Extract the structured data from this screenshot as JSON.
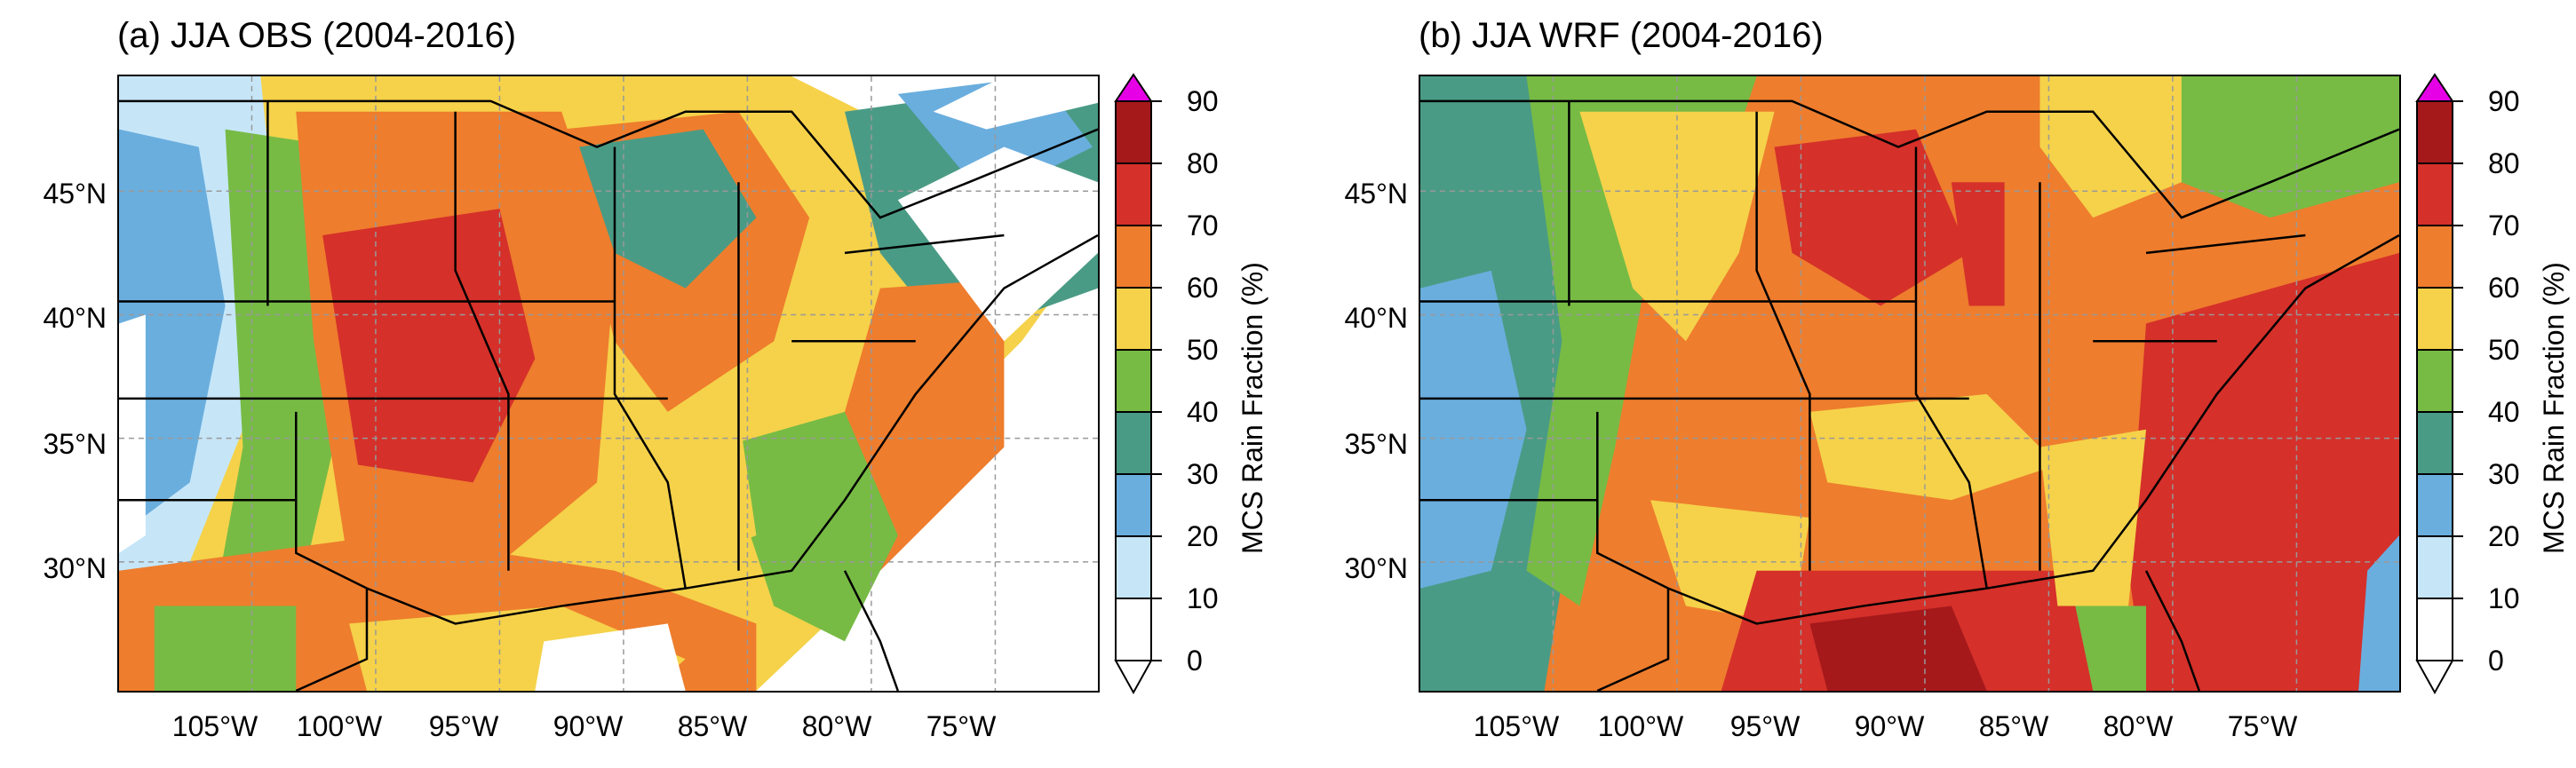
{
  "panels": [
    {
      "id": "a",
      "title": "(a) JJA OBS (2004-2016)",
      "lat_labels": [
        "45°N",
        "40°N",
        "35°N",
        "30°N"
      ],
      "lon_labels": [
        "105°W",
        "100°W",
        "95°W",
        "90°W",
        "85°W",
        "80°W",
        "75°W"
      ],
      "colorbar_label": "MCS Rain Fraction (%)",
      "colorbar_ticks": [
        "0",
        "10",
        "20",
        "30",
        "40",
        "50",
        "60",
        "70",
        "80",
        "90"
      ]
    },
    {
      "id": "b",
      "title": "(b) JJA WRF (2004-2016)",
      "lat_labels": [
        "45°N",
        "40°N",
        "35°N",
        "30°N"
      ],
      "lon_labels": [
        "105°W",
        "100°W",
        "95°W",
        "90°W",
        "85°W",
        "80°W",
        "75°W"
      ],
      "colorbar_label": "MCS Rain Fraction (%)",
      "colorbar_ticks": [
        "0",
        "10",
        "20",
        "30",
        "40",
        "50",
        "60",
        "70",
        "80",
        "90"
      ]
    }
  ],
  "colors": {
    "c0_10": "#ffffff",
    "c10_20": "#c6e6f8",
    "c20_30": "#6aaede",
    "c30_40": "#4a9b85",
    "c40_50": "#77bb45",
    "c50_60": "#f5d24a",
    "c60_70": "#ee7d2d",
    "c70_80": "#d5302a",
    "c80_90": "#a5191b",
    "over": "#e600e6"
  }
}
